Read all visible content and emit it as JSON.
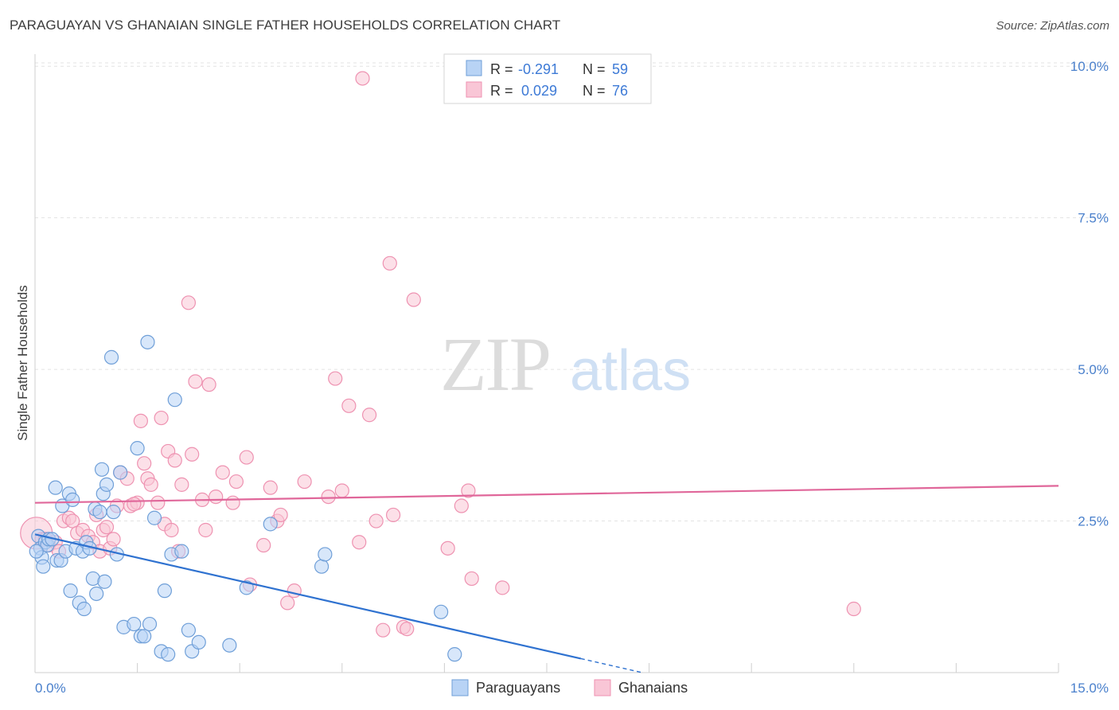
{
  "header": {
    "title": "PARAGUAYAN VS GHANAIAN SINGLE FATHER HOUSEHOLDS CORRELATION CHART",
    "source": "Source: ZipAtlas.com"
  },
  "watermark": {
    "zip": "ZIP",
    "atlas": "atlas"
  },
  "legend_stats": [
    {
      "r_label": "R =",
      "r_value": "-0.291",
      "n_label": "N =",
      "n_value": "59"
    },
    {
      "r_label": "R =",
      "r_value": "0.029",
      "n_label": "N =",
      "n_value": "76"
    }
  ],
  "colors": {
    "paraguayans_fill": "#b8d3f5",
    "paraguayans_stroke": "#6f9fd8",
    "paraguayans_line": "#2f72d0",
    "ghanaians_fill": "#f9c6d6",
    "ghanaians_stroke": "#ee92b1",
    "ghanaians_line": "#e0679a",
    "tick_label": "#4a80cc",
    "grid": "#e3e3e3"
  },
  "chart_data": {
    "type": "scatter",
    "ylabel": "Single Father Households",
    "xlim": [
      0,
      15
    ],
    "ylim": [
      0,
      10.2
    ],
    "x_tick_labels": [
      "0.0%",
      "15.0%"
    ],
    "y_ticks": [
      2.5,
      5.0,
      7.5,
      10.0
    ],
    "y_tick_labels": [
      "2.5%",
      "5.0%",
      "7.5%",
      "10.0%"
    ],
    "grid": true,
    "legend_position": "bottom-center",
    "series": [
      {
        "name": "Paraguayans",
        "trend": {
          "x0": 0,
          "y0": 2.28,
          "x1": 8.9,
          "y1": 0.0,
          "solid_until_x": 8.0
        },
        "points": [
          [
            0.05,
            2.25
          ],
          [
            0.08,
            2.05
          ],
          [
            0.1,
            1.9
          ],
          [
            0.12,
            1.75
          ],
          [
            0.15,
            2.15
          ],
          [
            0.18,
            2.1
          ],
          [
            0.2,
            2.2
          ],
          [
            0.25,
            2.2
          ],
          [
            0.3,
            3.05
          ],
          [
            0.32,
            1.85
          ],
          [
            0.38,
            1.85
          ],
          [
            0.4,
            2.75
          ],
          [
            0.45,
            2.0
          ],
          [
            0.5,
            2.95
          ],
          [
            0.52,
            1.35
          ],
          [
            0.55,
            2.85
          ],
          [
            0.6,
            2.05
          ],
          [
            0.65,
            1.15
          ],
          [
            0.7,
            2.0
          ],
          [
            0.72,
            1.05
          ],
          [
            0.75,
            2.15
          ],
          [
            0.8,
            2.05
          ],
          [
            0.85,
            1.55
          ],
          [
            0.88,
            2.7
          ],
          [
            0.9,
            1.3
          ],
          [
            0.95,
            2.65
          ],
          [
            0.98,
            3.35
          ],
          [
            1.0,
            2.95
          ],
          [
            1.02,
            1.5
          ],
          [
            1.05,
            3.1
          ],
          [
            1.12,
            5.2
          ],
          [
            1.15,
            2.65
          ],
          [
            1.2,
            1.95
          ],
          [
            1.25,
            3.3
          ],
          [
            1.3,
            0.75
          ],
          [
            1.45,
            0.8
          ],
          [
            1.5,
            3.7
          ],
          [
            1.55,
            0.6
          ],
          [
            1.6,
            0.6
          ],
          [
            1.65,
            5.45
          ],
          [
            1.68,
            0.8
          ],
          [
            1.75,
            2.55
          ],
          [
            1.85,
            0.35
          ],
          [
            1.9,
            1.35
          ],
          [
            1.95,
            0.3
          ],
          [
            2.0,
            1.95
          ],
          [
            2.05,
            4.5
          ],
          [
            2.15,
            2.0
          ],
          [
            2.25,
            0.7
          ],
          [
            2.3,
            0.35
          ],
          [
            2.4,
            0.5
          ],
          [
            2.85,
            0.45
          ],
          [
            3.1,
            1.4
          ],
          [
            3.45,
            2.45
          ],
          [
            4.2,
            1.75
          ],
          [
            4.25,
            1.95
          ],
          [
            5.95,
            1.0
          ],
          [
            6.15,
            0.3
          ],
          [
            0.02,
            2.0
          ]
        ]
      },
      {
        "name": "Ghanaians",
        "trend": {
          "x0": 0,
          "y0": 2.8,
          "x1": 15,
          "y1": 3.08
        },
        "points": [
          [
            0.02,
            2.3
          ],
          [
            0.1,
            2.2
          ],
          [
            0.15,
            2.2
          ],
          [
            0.2,
            2.1
          ],
          [
            0.3,
            2.15
          ],
          [
            0.35,
            2.0
          ],
          [
            0.42,
            2.5
          ],
          [
            0.5,
            2.55
          ],
          [
            0.55,
            2.5
          ],
          [
            0.62,
            2.3
          ],
          [
            0.7,
            2.35
          ],
          [
            0.78,
            2.25
          ],
          [
            0.85,
            2.15
          ],
          [
            0.9,
            2.6
          ],
          [
            0.95,
            2.0
          ],
          [
            1.0,
            2.35
          ],
          [
            1.05,
            2.4
          ],
          [
            1.1,
            2.05
          ],
          [
            1.15,
            2.2
          ],
          [
            1.2,
            2.75
          ],
          [
            1.25,
            3.3
          ],
          [
            1.35,
            3.2
          ],
          [
            1.4,
            2.75
          ],
          [
            1.5,
            2.8
          ],
          [
            1.55,
            4.15
          ],
          [
            1.6,
            3.45
          ],
          [
            1.65,
            3.2
          ],
          [
            1.7,
            3.1
          ],
          [
            1.8,
            2.8
          ],
          [
            1.85,
            4.2
          ],
          [
            1.9,
            2.45
          ],
          [
            1.95,
            3.65
          ],
          [
            2.0,
            2.35
          ],
          [
            2.05,
            3.5
          ],
          [
            2.1,
            2.0
          ],
          [
            2.15,
            3.1
          ],
          [
            2.25,
            6.1
          ],
          [
            2.3,
            3.6
          ],
          [
            2.35,
            4.8
          ],
          [
            2.45,
            2.85
          ],
          [
            2.5,
            2.35
          ],
          [
            2.55,
            4.75
          ],
          [
            2.65,
            2.9
          ],
          [
            2.75,
            3.3
          ],
          [
            2.9,
            2.8
          ],
          [
            2.95,
            3.15
          ],
          [
            3.1,
            3.55
          ],
          [
            3.15,
            1.45
          ],
          [
            3.35,
            2.1
          ],
          [
            3.45,
            3.05
          ],
          [
            3.55,
            2.5
          ],
          [
            3.6,
            2.6
          ],
          [
            3.7,
            1.15
          ],
          [
            3.8,
            1.35
          ],
          [
            3.95,
            3.15
          ],
          [
            4.3,
            2.9
          ],
          [
            4.4,
            4.85
          ],
          [
            4.5,
            3.0
          ],
          [
            4.6,
            4.4
          ],
          [
            4.75,
            2.15
          ],
          [
            4.8,
            9.8
          ],
          [
            4.9,
            4.25
          ],
          [
            5.0,
            2.5
          ],
          [
            5.1,
            0.7
          ],
          [
            5.2,
            6.75
          ],
          [
            5.25,
            2.6
          ],
          [
            5.4,
            0.75
          ],
          [
            5.55,
            6.15
          ],
          [
            6.05,
            2.05
          ],
          [
            6.25,
            2.75
          ],
          [
            6.35,
            3.0
          ],
          [
            6.4,
            1.55
          ],
          [
            6.85,
            1.4
          ],
          [
            12.0,
            1.05
          ],
          [
            5.45,
            0.72
          ],
          [
            1.45,
            2.78
          ]
        ]
      }
    ]
  },
  "bottom_legend": [
    {
      "label": "Paraguayans"
    },
    {
      "label": "Ghanaians"
    }
  ]
}
